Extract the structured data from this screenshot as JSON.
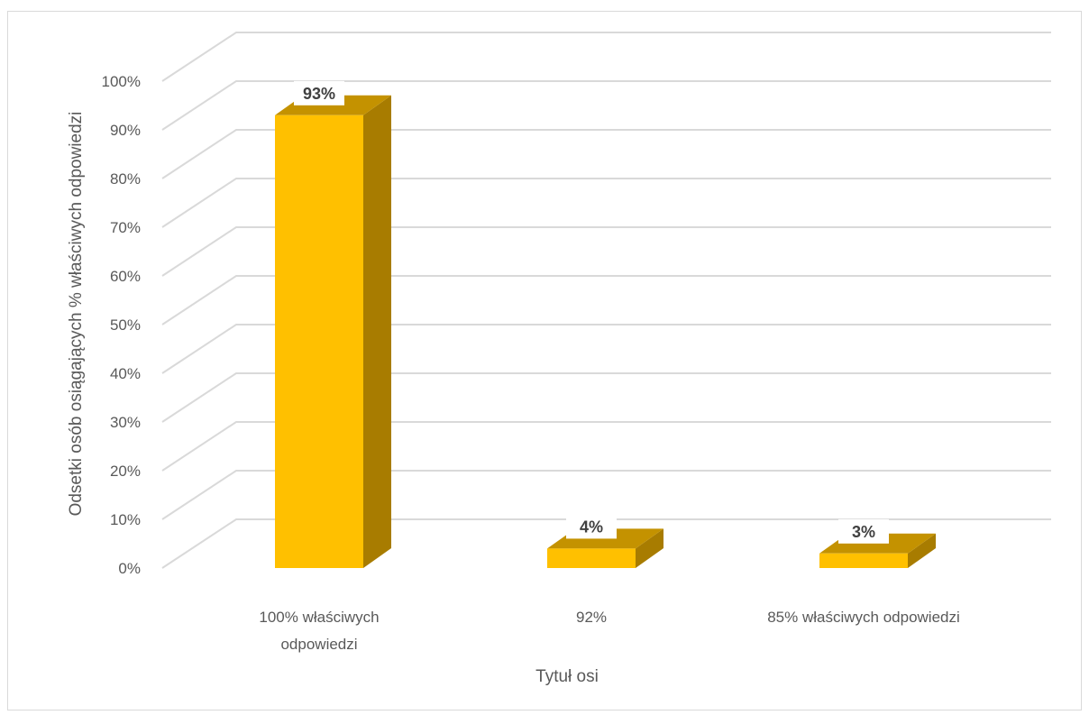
{
  "chart_data": {
    "type": "bar",
    "style": "3d-column",
    "categories": [
      "100% właściwych odpowiedzi",
      "92%",
      "85% właściwych odpowiedzi"
    ],
    "category_lines": [
      [
        "100% właściwych",
        "odpowiedzi"
      ],
      [
        "92%"
      ],
      [
        "85% właściwych odpowiedzi"
      ]
    ],
    "values": [
      93,
      4,
      3
    ],
    "data_labels": [
      "93%",
      "4%",
      "3%"
    ],
    "ylabel": "Odsetki osób osiągających % właściwych odpowiedzi",
    "xlabel": "Tytuł osi",
    "ylim": [
      0,
      100
    ],
    "yticks": [
      "0%",
      "10%",
      "20%",
      "30%",
      "40%",
      "50%",
      "60%",
      "70%",
      "80%",
      "90%",
      "100%"
    ],
    "grid": true,
    "legend": "none",
    "colors": {
      "front": "#FFC000",
      "side": "#A87C00",
      "top": "#C49200",
      "grid": "#d9d9d9"
    }
  }
}
